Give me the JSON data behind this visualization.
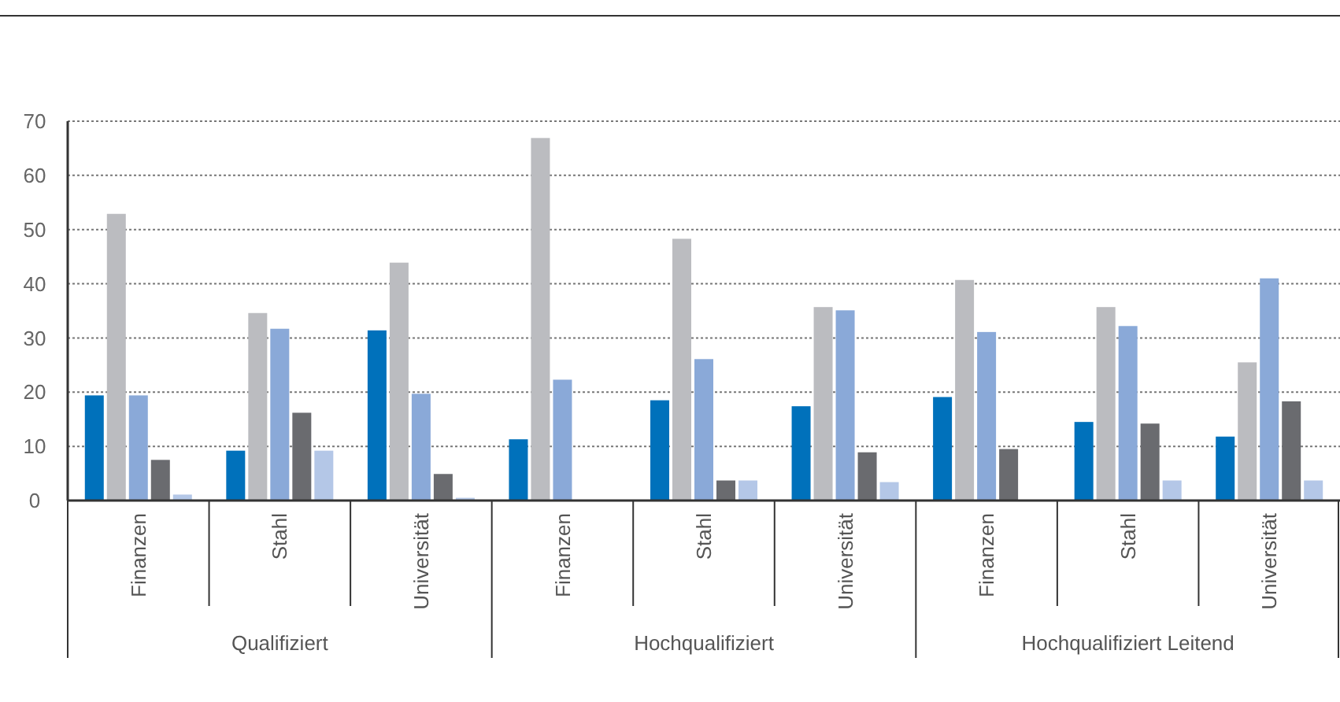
{
  "chart_data": {
    "type": "bar",
    "categories": [
      "Finanzen",
      "Stahl",
      "Universität",
      "Finanzen",
      "Stahl",
      "Universität",
      "Finanzen",
      "Stahl",
      "Universität"
    ],
    "series": [
      {
        "color": "#0071bb",
        "values": [
          19.4,
          9.2,
          31.4,
          11.3,
          18.5,
          17.4,
          19.1,
          14.5,
          11.8
        ]
      },
      {
        "color": "#bbbcc0",
        "values": [
          52.9,
          34.6,
          43.9,
          66.9,
          48.3,
          35.7,
          40.7,
          35.7,
          25.5
        ]
      },
      {
        "color": "#8aa9d8",
        "values": [
          19.4,
          31.7,
          19.7,
          22.3,
          26.1,
          35.1,
          31.1,
          32.2,
          41.0
        ]
      },
      {
        "color": "#6a6b6f",
        "values": [
          7.5,
          16.2,
          4.9,
          null,
          3.7,
          8.9,
          9.5,
          14.2,
          18.3
        ]
      },
      {
        "color": "#b4c7e7",
        "values": [
          1.1,
          9.2,
          0.5,
          null,
          3.7,
          3.4,
          null,
          3.7,
          3.7
        ]
      }
    ],
    "annotations": [
      "Qualifiziert",
      "Hochqualifiziert",
      "Hochqualifiziert Leitend"
    ],
    "ylim": [
      0,
      70
    ],
    "yticks": [
      0,
      10,
      20,
      30,
      40,
      50,
      60,
      70
    ],
    "grid": "y"
  }
}
